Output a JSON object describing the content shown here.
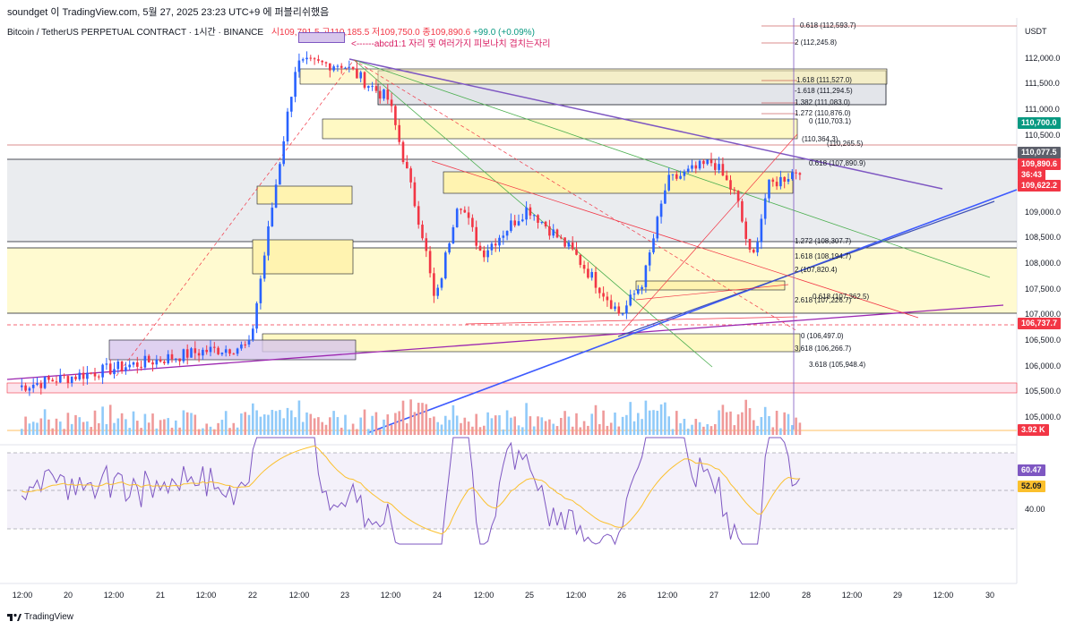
{
  "header": {
    "text": "soundget 이 TradingView.com, 5월 27, 2025 23:23 UTC+9 에 퍼블리쉬했음"
  },
  "symbol": {
    "name": "Bitcoin / TetherUS PERPETUAL CONTRACT · 1시간 · BINANCE",
    "ohlc_text": "시109,791.5 고110,185.5 저109,750.0 종109,890.6",
    "change_text": "+99.0 (+0.09%)"
  },
  "annotation": "<------abcd1:1 자리 및 여러가지 피보나치 겹치는자리",
  "price_scale": {
    "unit": "USDT",
    "ticks": [
      "112,000.0",
      "111,500.0",
      "111,000.0",
      "110,500.0",
      "109,000.0",
      "108,500.0",
      "108,000.0",
      "107,500.0",
      "107,000.0",
      "106,500.0",
      "106,000.0",
      "105,500.0",
      "105,000.0"
    ],
    "tags": [
      {
        "text": "110,700.0",
        "color": "#089981"
      },
      {
        "text": "110,077.5",
        "color": "#5d606b"
      },
      {
        "text": "109,890.6",
        "color": "#f23645"
      },
      {
        "text": "36:43",
        "color": "#f23645"
      },
      {
        "text": "109,622.2",
        "color": "#f23645"
      },
      {
        "text": "106,737.7",
        "color": "#f23645"
      },
      {
        "text": "3.92 K",
        "color": "#f23645"
      }
    ],
    "rsi_tags": [
      {
        "text": "60.47",
        "color": "#7e57c2"
      },
      {
        "text": "52.09",
        "color": "#fbc02d"
      }
    ],
    "rsi_tick": "40.00"
  },
  "fib_labels": [
    "0.618 (112,593.7)",
    "2 (112,245.8)",
    "1.618 (111,527.0)",
    "-1.618 (111,294.5)",
    "1.382 (111,083.0)",
    "1.272 (110,876.0)",
    "0 (110,703.1)",
    "(110,364.3)",
    "(110,265.5)",
    "0.618 (107,890.9)",
    "2 (107,820.4)",
    "0.618 (107,362.5)",
    "2.618 (107,226.7)",
    "0 (106,497.0)",
    "3.618 (106,266.7)",
    "3.618 (105,948.4)",
    "1.618 (108,194.7)",
    "1.272 (108,307.7)"
  ],
  "x_axis": {
    "ticks": [
      "12:00",
      "20",
      "12:00",
      "21",
      "12:00",
      "22",
      "12:00",
      "23",
      "12:00",
      "24",
      "12:00",
      "25",
      "12:00",
      "26",
      "12:00",
      "27",
      "12:00",
      "28",
      "12:00",
      "29",
      "12:00",
      "30"
    ]
  },
  "footer": {
    "brand": "TradingView"
  },
  "chart_data": {
    "type": "candlestick",
    "title": "Bitcoin / TetherUS PERPETUAL CONTRACT · 1시간 · BINANCE",
    "ylabel": "USDT",
    "ylim": [
      104700,
      112800
    ],
    "x_range_days": [
      "19 12:00",
      "30 12:00"
    ],
    "key_points": [
      {
        "time": "19 12:00",
        "price": 105600
      },
      {
        "time": "21 12:00",
        "price": 106300
      },
      {
        "time": "22 00:00",
        "price": 106400
      },
      {
        "time": "22 06:00",
        "price": 109200
      },
      {
        "time": "22 12:00",
        "price": 111900
      },
      {
        "time": "23 00:00",
        "price": 111900
      },
      {
        "time": "23 12:00",
        "price": 111200
      },
      {
        "time": "23 21:00",
        "price": 108500
      },
      {
        "time": "24 00:00",
        "price": 107200
      },
      {
        "time": "24 06:00",
        "price": 109300
      },
      {
        "time": "24 12:00",
        "price": 108200
      },
      {
        "time": "25 00:00",
        "price": 109100
      },
      {
        "time": "25 12:00",
        "price": 108200
      },
      {
        "time": "26 00:00",
        "price": 107000
      },
      {
        "time": "26 06:00",
        "price": 107700
      },
      {
        "time": "26 12:00",
        "price": 109600
      },
      {
        "time": "27 00:00",
        "price": 110000
      },
      {
        "time": "27 06:00",
        "price": 109300
      },
      {
        "time": "27 10:00",
        "price": 108000
      },
      {
        "time": "27 14:00",
        "price": 109500
      },
      {
        "time": "27 23:00",
        "price": 109890.6
      }
    ],
    "horizontal_levels": [
      110700.0,
      110077.5,
      109622.2,
      106737.7
    ],
    "indicator": {
      "name": "RSI",
      "values_last": [
        60.47,
        52.09
      ]
    },
    "grid": false
  }
}
